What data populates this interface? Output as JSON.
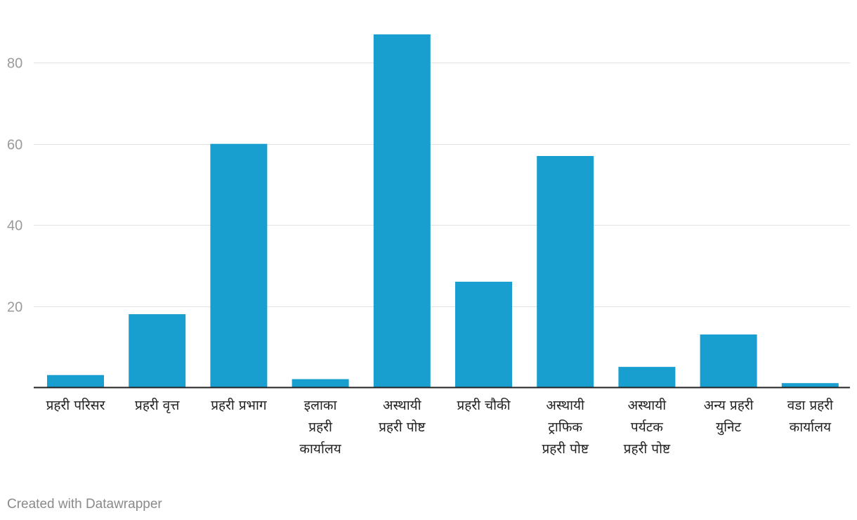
{
  "chart_data": {
    "type": "bar",
    "title": "",
    "xlabel": "",
    "ylabel": "",
    "ylim": [
      0,
      92
    ],
    "yticks": [
      20,
      40,
      60,
      80
    ],
    "grid": true,
    "bar_color": "#199fcf",
    "categories": [
      [
        "प्रहरी परिसर"
      ],
      [
        "प्रहरी वृत्त"
      ],
      [
        "प्रहरी प्रभाग"
      ],
      [
        "इलाका",
        "प्रहरी",
        "कार्यालय"
      ],
      [
        "अस्थायी",
        "प्रहरी पोष्ट"
      ],
      [
        "प्रहरी चौकी"
      ],
      [
        "अस्थायी",
        "ट्राफिक",
        "प्रहरी पोष्ट"
      ],
      [
        "अस्थायी",
        "पर्यटक",
        "प्रहरी पोष्ट"
      ],
      [
        "अन्य प्रहरी",
        "युनिट"
      ],
      [
        "वडा प्रहरी",
        "कार्यालय"
      ]
    ],
    "values": [
      3,
      18,
      60,
      2,
      87,
      26,
      57,
      5,
      13,
      1
    ]
  },
  "footer": {
    "credit": "Created with Datawrapper"
  }
}
